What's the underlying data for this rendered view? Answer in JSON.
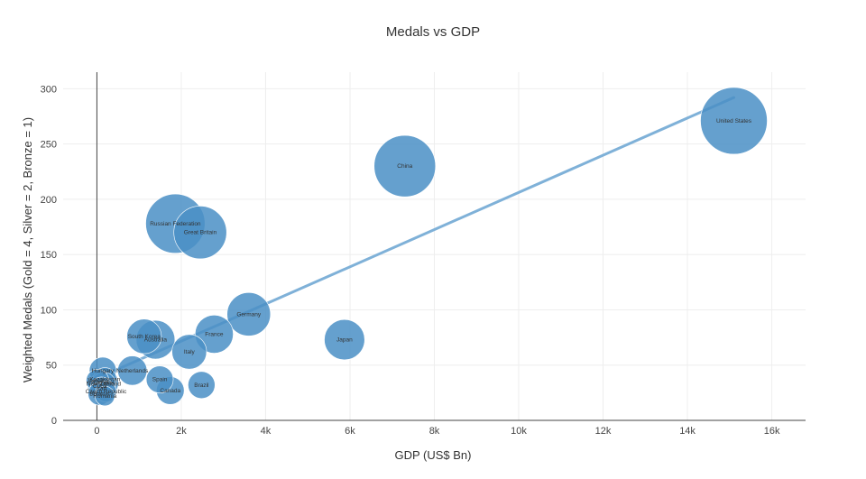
{
  "chart_data": {
    "type": "scatter",
    "title": "Medals vs GDP",
    "xlabel": "GDP (US$ Bn)",
    "ylabel": "Weighted Medals (Gold = 4, Silver = 2, Bronze = 1)",
    "xlim": [
      -800,
      16800
    ],
    "ylim": [
      0,
      315
    ],
    "x_ticks": [
      0,
      2000,
      4000,
      6000,
      8000,
      10000,
      12000,
      14000,
      16000
    ],
    "x_tick_labels": [
      "0",
      "2k",
      "4k",
      "6k",
      "8k",
      "10k",
      "12k",
      "14k",
      "16k"
    ],
    "y_ticks": [
      0,
      50,
      100,
      150,
      200,
      250,
      300
    ],
    "y_tick_labels": [
      "0",
      "50",
      "100",
      "150",
      "200",
      "250",
      "300"
    ],
    "grid": true,
    "marker_color": "#4a8fc6",
    "trend_color": "#7fb1d8",
    "points": [
      {
        "label": "United States",
        "x": 15100,
        "y": 271,
        "medals": 104
      },
      {
        "label": "China",
        "x": 7300,
        "y": 230,
        "medals": 88
      },
      {
        "label": "Russian Federation",
        "x": 1860,
        "y": 178,
        "medals": 82
      },
      {
        "label": "Great Britain",
        "x": 2450,
        "y": 170,
        "medals": 65
      },
      {
        "label": "Germany",
        "x": 3600,
        "y": 96,
        "medals": 44
      },
      {
        "label": "Japan",
        "x": 5870,
        "y": 73,
        "medals": 38
      },
      {
        "label": "France",
        "x": 2780,
        "y": 78,
        "medals": 34
      },
      {
        "label": "South Korea",
        "x": 1120,
        "y": 76,
        "medals": 28
      },
      {
        "label": "Australia",
        "x": 1390,
        "y": 73,
        "medals": 35
      },
      {
        "label": "Italy",
        "x": 2190,
        "y": 62,
        "medals": 28
      },
      {
        "label": "Netherlands",
        "x": 840,
        "y": 45,
        "medals": 20
      },
      {
        "label": "Hungary",
        "x": 140,
        "y": 45,
        "medals": 17
      },
      {
        "label": "Spain",
        "x": 1490,
        "y": 37,
        "medals": 17
      },
      {
        "label": "Brazil",
        "x": 2480,
        "y": 32,
        "medals": 17
      },
      {
        "label": "Canada",
        "x": 1740,
        "y": 27,
        "medals": 18
      },
      {
        "label": "Kazakhstan",
        "x": 190,
        "y": 37,
        "medals": 13
      },
      {
        "label": "Jamaica",
        "x": 15,
        "y": 36,
        "medals": 12
      },
      {
        "label": "Ukraine",
        "x": 165,
        "y": 34,
        "medals": 20
      },
      {
        "label": "New Zealand",
        "x": 160,
        "y": 33,
        "medals": 13
      },
      {
        "label": "Cuba",
        "x": 70,
        "y": 31,
        "medals": 14
      },
      {
        "label": "Iran",
        "x": 110,
        "y": 29,
        "medals": 12
      },
      {
        "label": "Czech Republic",
        "x": 215,
        "y": 26,
        "medals": 10
      },
      {
        "label": "Belarus",
        "x": 60,
        "y": 24,
        "medals": 12
      },
      {
        "label": "Romania",
        "x": 190,
        "y": 22,
        "medals": 9
      }
    ],
    "bubble_labels": [
      {
        "text": "United States",
        "x": 15100,
        "y": 271
      },
      {
        "text": "China",
        "x": 7300,
        "y": 230
      },
      {
        "text": "Russian Federation",
        "x": 1860,
        "y": 178
      },
      {
        "text": "Great Britain",
        "x": 2450,
        "y": 170
      },
      {
        "text": "Germany",
        "x": 3600,
        "y": 96
      },
      {
        "text": "Japan",
        "x": 5870,
        "y": 73
      },
      {
        "text": "France",
        "x": 2780,
        "y": 78
      },
      {
        "text": "South Korea",
        "x": 1120,
        "y": 76
      },
      {
        "text": "Australia",
        "x": 1390,
        "y": 73
      },
      {
        "text": "Italy",
        "x": 2190,
        "y": 62
      },
      {
        "text": "Netherlands",
        "x": 840,
        "y": 45
      },
      {
        "text": "Hungary",
        "x": 140,
        "y": 45
      },
      {
        "text": "Spain",
        "x": 1490,
        "y": 37
      },
      {
        "text": "Brazil",
        "x": 2480,
        "y": 32
      },
      {
        "text": "Canada",
        "x": 1740,
        "y": 27
      },
      {
        "text": "Kazakhstan",
        "x": 190,
        "y": 37
      },
      {
        "text": "Jamaica",
        "x": 15,
        "y": 36
      },
      {
        "text": "Ukraine",
        "x": 165,
        "y": 34
      },
      {
        "text": "New Zealand",
        "x": 160,
        "y": 33
      },
      {
        "text": "Cuba",
        "x": 70,
        "y": 31
      },
      {
        "text": "Iran",
        "x": 110,
        "y": 29
      },
      {
        "text": "Czech Republic",
        "x": 215,
        "y": 26
      },
      {
        "text": "Belarus",
        "x": 60,
        "y": 24
      },
      {
        "text": "Romania",
        "x": 190,
        "y": 22
      }
    ],
    "trend_line": {
      "x": [
        0,
        15100
      ],
      "y": [
        38,
        292
      ]
    }
  }
}
